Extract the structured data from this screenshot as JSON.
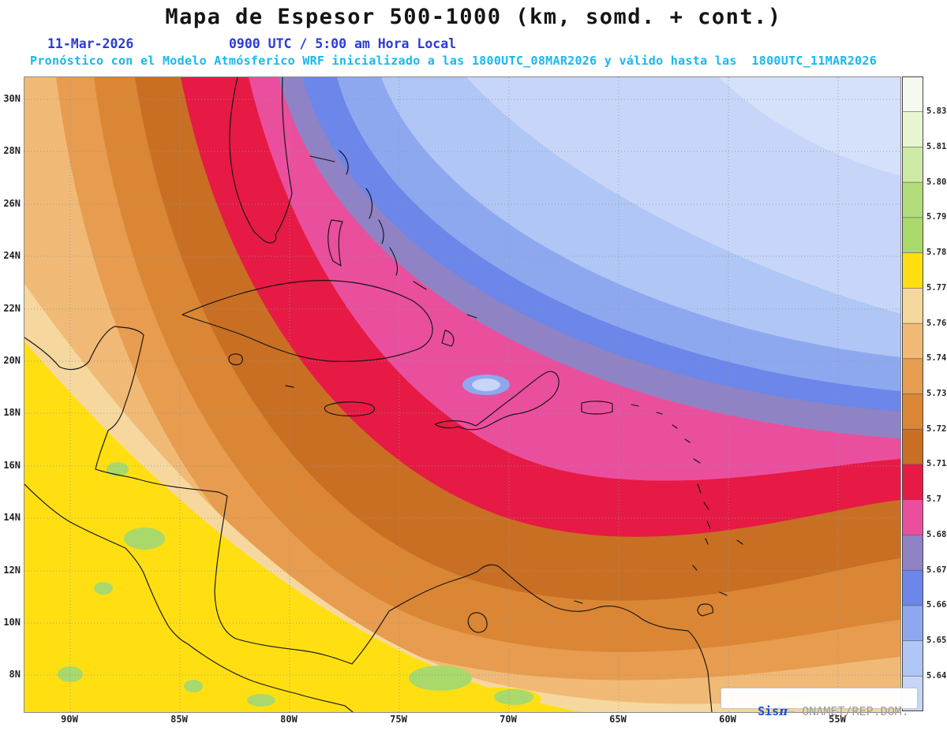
{
  "header": {
    "title": "Mapa de Espesor 500-1000 (km, somd. + cont.)",
    "date": "11-Mar-2026",
    "time": "0900 UTC / 5:00 am Hora Local",
    "forecast": "Pronóstico con el Modelo Atmósferico WRF inicializado a las 1800UTC_08MAR2026 y válido hasta las  1800UTC_11MAR2026"
  },
  "map": {
    "lat_labels": [
      "30N",
      "28N",
      "26N",
      "24N",
      "22N",
      "20N",
      "18N",
      "16N",
      "14N",
      "12N",
      "10N",
      "8N"
    ],
    "lon_labels": [
      "90W",
      "85W",
      "80W",
      "75W",
      "70W",
      "65W",
      "60W",
      "55W"
    ]
  },
  "colorbar": {
    "levels": [
      "5.831",
      "5.819",
      "5.807",
      "5.795",
      "5.783",
      "5.772",
      "5.76",
      "5.748",
      "5.736",
      "5.724",
      "5.712",
      "5.7",
      "5.688",
      "5.676",
      "5.664",
      "5.652",
      "5.64"
    ],
    "colors_top_to_bottom": [
      "#f6f9ef",
      "#e7f5d1",
      "#cfeaa6",
      "#b2dd7a",
      "#a9d96a",
      "#ffdf12",
      "#f6d89e",
      "#f0ba76",
      "#e79c4f",
      "#da8634",
      "#c96f24",
      "#e61a45",
      "#ea4f9e",
      "#8f83c5",
      "#6c86e9",
      "#8ea8f0",
      "#b0c6f5",
      "#c7d6f8"
    ]
  },
  "watermark": {
    "brand": "Sis",
    "symbol": "π",
    "rest": "— ONAMET/REP.DOM."
  },
  "chart_data": {
    "type": "heatmap",
    "title": "Mapa de Espesor 500-1000 (km, somd. + cont.)",
    "x_tick_labels": [
      "90W",
      "85W",
      "80W",
      "75W",
      "70W",
      "65W",
      "60W",
      "55W"
    ],
    "y_tick_labels": [
      "30N",
      "28N",
      "26N",
      "24N",
      "22N",
      "20N",
      "18N",
      "16N",
      "14N",
      "12N",
      "10N",
      "8N"
    ],
    "contour_levels_km": [
      5.64,
      5.652,
      5.664,
      5.676,
      5.688,
      5.7,
      5.712,
      5.724,
      5.736,
      5.748,
      5.76,
      5.772,
      5.783,
      5.795,
      5.807,
      5.819,
      5.831
    ],
    "legend_position": "right",
    "grid": "dotted",
    "pattern_summary": "Low thickness (blue, <5.64-5.676 km) over northeast Atlantic; red/pink gradient band arcs from Florida southeast across Hispaniola then east; high thickness (yellow-green, 5.772+ km) over Central America and northern South America"
  }
}
